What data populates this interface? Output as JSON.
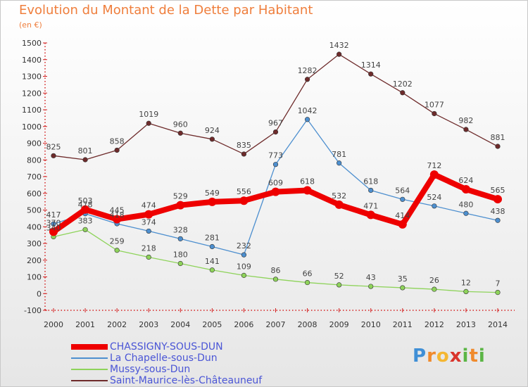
{
  "header": {
    "title": "Evolution du Montant de la Dette par Habitant",
    "subtitle": "(en €)"
  },
  "logo": {
    "text": "Proxiti",
    "letters": [
      "P",
      "r",
      "o",
      "x",
      "i",
      "t",
      "i"
    ]
  },
  "chart_data": {
    "type": "line",
    "title": "Evolution du Montant de la Dette par Habitant",
    "subtitle": "(en €)",
    "xlabel": "",
    "ylabel": "",
    "x": [
      "2000",
      "2001",
      "2002",
      "2003",
      "2004",
      "2005",
      "2006",
      "2007",
      "2008",
      "2009",
      "2010",
      "2011",
      "2012",
      "2013",
      "2014"
    ],
    "ylim": [
      -100,
      1500
    ],
    "yticks": [
      -100,
      0,
      100,
      200,
      300,
      400,
      500,
      600,
      700,
      800,
      900,
      1000,
      1100,
      1200,
      1300,
      1400,
      1500
    ],
    "grid": false,
    "legend_position": "bottom-left",
    "series": [
      {
        "name": "Saint-Maurice-lès-Châteauneuf",
        "color": "#6e2b2b",
        "values": [
          825,
          801,
          858,
          1019,
          960,
          924,
          835,
          967,
          1282,
          1432,
          1314,
          1202,
          1077,
          982,
          881
        ],
        "labels": [
          "825",
          "801",
          "858",
          "1019",
          "960",
          "924",
          "835",
          "967",
          "1282",
          "1432",
          "1314",
          "1202",
          "1077",
          "982",
          "881"
        ]
      },
      {
        "name": "La Chapelle-sous-Dun",
        "color": "#4d8fcf",
        "values": [
          417,
          478,
          418,
          374,
          328,
          281,
          232,
          773,
          1042,
          781,
          618,
          564,
          524,
          480,
          438
        ],
        "labels": [
          "417",
          "478",
          "418",
          "374",
          "328",
          "281",
          "232",
          "773",
          "1042",
          "781",
          "618",
          "564",
          "524",
          "480",
          "438"
        ]
      },
      {
        "name": "Mussy-sous-Dun",
        "color": "#8ed35a",
        "values": [
          340,
          383,
          259,
          218,
          180,
          141,
          109,
          86,
          66,
          52,
          43,
          35,
          26,
          12,
          7
        ],
        "labels": [
          "340",
          "383",
          "259",
          "218",
          "180",
          "141",
          "109",
          "86",
          "66",
          "52",
          "43",
          "35",
          "26",
          "12",
          "7"
        ]
      },
      {
        "name": "CHASSIGNY-SOUS-DUN",
        "color": "#ee0000",
        "values": [
          370,
          503,
          445,
          474,
          529,
          549,
          556,
          609,
          618,
          532,
          471,
          414,
          712,
          624,
          565
        ],
        "labels": [
          "370",
          "503",
          "445",
          "474",
          "529",
          "549",
          "556",
          "609",
          "618",
          "532",
          "471",
          "414",
          "712",
          "624",
          "565"
        ]
      }
    ],
    "legend_order": [
      "CHASSIGNY-SOUS-DUN",
      "La Chapelle-sous-Dun",
      "Mussy-sous-Dun",
      "Saint-Maurice-lès-Châteauneuf"
    ]
  }
}
